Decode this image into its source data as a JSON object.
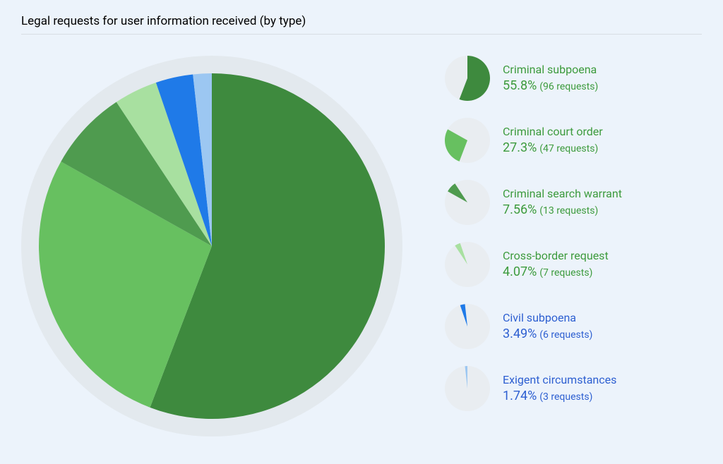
{
  "title": "Legal requests for user information received (by type)",
  "chart": {
    "type": "pie",
    "background_color": "#ecf3fb",
    "halo_color": "#e3e9ee",
    "pie_diameter": 490,
    "halo_diameter": 540,
    "mini_diameter": 64,
    "mini_bg": "#e9edf1",
    "start_angle_deg": 0,
    "slices": [
      {
        "label": "Criminal subpoena",
        "percent": "55.8%",
        "value": 55.814,
        "requests": "(96 requests)",
        "color": "#3e8a3e",
        "text_color": "#3d9b3d"
      },
      {
        "label": "Criminal court order",
        "percent": "27.3%",
        "value": 27.326,
        "requests": "(47 requests)",
        "color": "#67c060",
        "text_color": "#3d9b3d"
      },
      {
        "label": "Criminal search warrant",
        "percent": "7.56%",
        "value": 7.558,
        "requests": "(13 requests)",
        "color": "#4f9b4f",
        "text_color": "#3d9b3d"
      },
      {
        "label": "Cross-border request",
        "percent": "4.07%",
        "value": 4.07,
        "requests": "(7 requests)",
        "color": "#a8e0a0",
        "text_color": "#3d9b3d"
      },
      {
        "label": "Civil subpoena",
        "percent": "3.49%",
        "value": 3.488,
        "requests": "(6 requests)",
        "color": "#1f7ae8",
        "text_color": "#2d5fd1"
      },
      {
        "label": "Exigent circumstances",
        "percent": "1.74%",
        "value": 1.744,
        "requests": "(3 requests)",
        "color": "#9cc7f2",
        "text_color": "#2d5fd1"
      }
    ]
  },
  "typography": {
    "title_fontsize": 17,
    "label_fontsize": 16,
    "percent_fontsize": 18,
    "requests_fontsize": 14
  }
}
